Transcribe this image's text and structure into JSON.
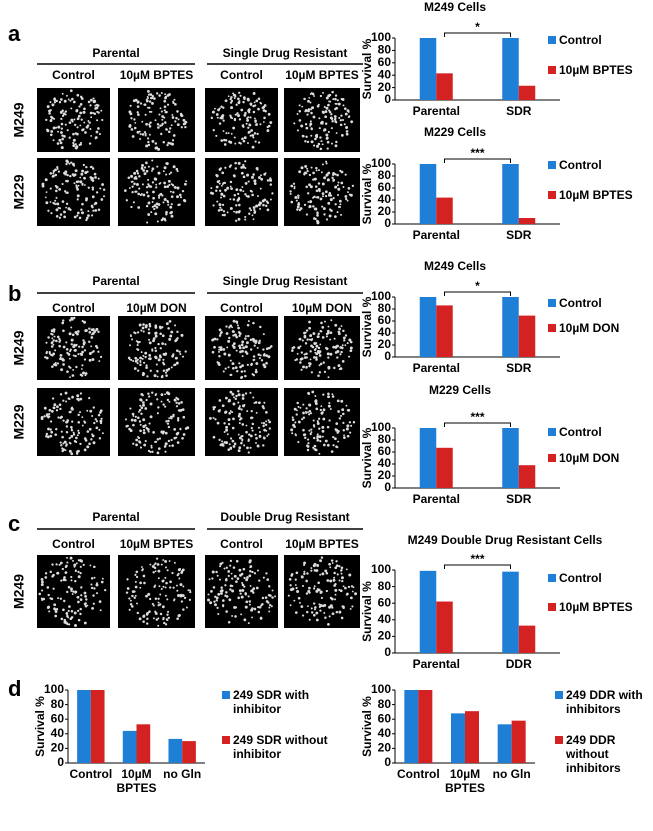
{
  "panels": [
    {
      "label": "a",
      "groups": [
        "Parental",
        "Single Drug Resistant"
      ],
      "columns": [
        "Control",
        "10µM BPTES",
        "Control",
        "10µM BPTES"
      ],
      "rows": [
        "M249",
        "M229"
      ]
    },
    {
      "label": "b",
      "groups": [
        "Parental",
        "Single Drug Resistant"
      ],
      "columns": [
        "Control",
        "10µM DON",
        "Control",
        "10µM DON"
      ],
      "rows": [
        "M249",
        "M229"
      ]
    },
    {
      "label": "c",
      "groups": [
        "Parental",
        "Double Drug Resistant"
      ],
      "columns": [
        "Control",
        "10µM BPTES",
        "Control",
        "10µM BPTES"
      ],
      "rows": [
        "M249"
      ]
    },
    {
      "label": "d"
    }
  ],
  "chart_data": [
    {
      "type": "bar",
      "title": "M249 Cells",
      "categories": [
        "Parental",
        "SDR"
      ],
      "series": [
        {
          "name": "Control",
          "color": "#1f7fd6",
          "values": [
            100,
            100
          ]
        },
        {
          "name": "10µM BPTES",
          "color": "#d42222",
          "values": [
            43,
            23
          ]
        }
      ],
      "ylabel": "Survival %",
      "ylim": [
        0,
        100
      ],
      "yticks": [
        0,
        20,
        40,
        60,
        80,
        100
      ],
      "annotation": "*"
    },
    {
      "type": "bar",
      "title": "M229 Cells",
      "categories": [
        "Parental",
        "SDR"
      ],
      "series": [
        {
          "name": "Control",
          "color": "#1f7fd6",
          "values": [
            100,
            100
          ]
        },
        {
          "name": "10µM BPTES",
          "color": "#d42222",
          "values": [
            44,
            10
          ]
        }
      ],
      "ylabel": "Survival %",
      "ylim": [
        0,
        100
      ],
      "yticks": [
        0,
        20,
        40,
        60,
        80,
        100
      ],
      "annotation": "***"
    },
    {
      "type": "bar",
      "title": "M249 Cells",
      "categories": [
        "Parental",
        "SDR"
      ],
      "series": [
        {
          "name": "Control",
          "color": "#1f7fd6",
          "values": [
            100,
            100
          ]
        },
        {
          "name": "10µM DON",
          "color": "#d42222",
          "values": [
            86,
            69
          ]
        }
      ],
      "ylabel": "Survival %",
      "ylim": [
        0,
        100
      ],
      "yticks": [
        0,
        20,
        40,
        60,
        80,
        100
      ],
      "annotation": "*"
    },
    {
      "type": "bar",
      "title": "M229 Cells",
      "categories": [
        "Parental",
        "SDR"
      ],
      "series": [
        {
          "name": "Control",
          "color": "#1f7fd6",
          "values": [
            100,
            100
          ]
        },
        {
          "name": "10µM DON",
          "color": "#d42222",
          "values": [
            67,
            38
          ]
        }
      ],
      "ylabel": "Survival %",
      "ylim": [
        0,
        100
      ],
      "yticks": [
        0,
        20,
        40,
        60,
        80,
        100
      ],
      "annotation": "***"
    },
    {
      "type": "bar",
      "title": "M249 Double Drug Resistant Cells",
      "categories": [
        "Parental",
        "DDR"
      ],
      "series": [
        {
          "name": "Control",
          "color": "#1f7fd6",
          "values": [
            99,
            98
          ]
        },
        {
          "name": "10µM BPTES",
          "color": "#d42222",
          "values": [
            62,
            33
          ]
        }
      ],
      "ylabel": "Survival %",
      "ylim": [
        0,
        100
      ],
      "yticks": [
        0,
        20,
        40,
        60,
        80,
        100
      ],
      "annotation": "***"
    },
    {
      "type": "bar",
      "categories": [
        "Control",
        "10µM BPTES",
        "no Gln"
      ],
      "series": [
        {
          "name": "249 SDR with inhibitor",
          "color": "#1f7fd6",
          "values": [
            100,
            44,
            33
          ]
        },
        {
          "name": "249 SDR without inhibitor",
          "color": "#d42222",
          "values": [
            100,
            53,
            30
          ]
        }
      ],
      "ylabel": "Survival %",
      "ylim": [
        0,
        100
      ],
      "yticks": [
        0,
        20,
        40,
        60,
        80,
        100
      ]
    },
    {
      "type": "bar",
      "categories": [
        "Control",
        "10µM BPTES",
        "no Gln"
      ],
      "series": [
        {
          "name": "249 DDR with inhibitors",
          "color": "#1f7fd6",
          "values": [
            100,
            68,
            53
          ]
        },
        {
          "name": "249 DDR without inhibitors",
          "color": "#d42222",
          "values": [
            100,
            71,
            58
          ]
        }
      ],
      "ylabel": "Survival %",
      "ylim": [
        0,
        100
      ],
      "yticks": [
        0,
        20,
        40,
        60,
        80,
        100
      ]
    }
  ]
}
